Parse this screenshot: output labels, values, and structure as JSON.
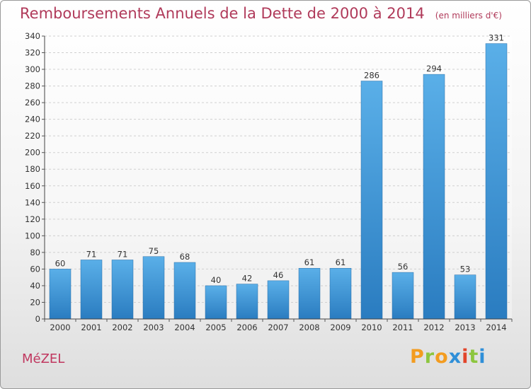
{
  "chart_data": {
    "type": "bar",
    "title": "Remboursements Annuels de la Dette de 2000 à 2014",
    "subtitle": "(en milliers d'€)",
    "categories": [
      "2000",
      "2001",
      "2002",
      "2003",
      "2004",
      "2005",
      "2006",
      "2007",
      "2008",
      "2009",
      "2010",
      "2011",
      "2012",
      "2013",
      "2014"
    ],
    "values": [
      60,
      71,
      71,
      75,
      68,
      40,
      42,
      46,
      61,
      61,
      286,
      56,
      294,
      53,
      331
    ],
    "ylim": [
      0,
      340
    ],
    "yticks": [
      0,
      20,
      40,
      60,
      80,
      100,
      120,
      140,
      160,
      180,
      200,
      220,
      240,
      260,
      280,
      300,
      320,
      340
    ],
    "grid": true,
    "data_labels": true
  },
  "commune": "MéZEL",
  "logo": {
    "text": "Proxiti",
    "letters": [
      {
        "char": "P",
        "color": "#f39c1f"
      },
      {
        "char": "r",
        "color": "#8dc63f"
      },
      {
        "char": "o",
        "color": "#f39c1f"
      },
      {
        "char": "x",
        "color": "#2f8fd8"
      },
      {
        "char": "i",
        "color": "#e2452b"
      },
      {
        "char": "t",
        "color": "#8dc63f"
      },
      {
        "char": "i",
        "color": "#2f8fd8"
      }
    ]
  },
  "colors": {
    "bar_top": "#5aafe8",
    "bar_bottom": "#2a7cc0",
    "title": "#b03a5a"
  }
}
